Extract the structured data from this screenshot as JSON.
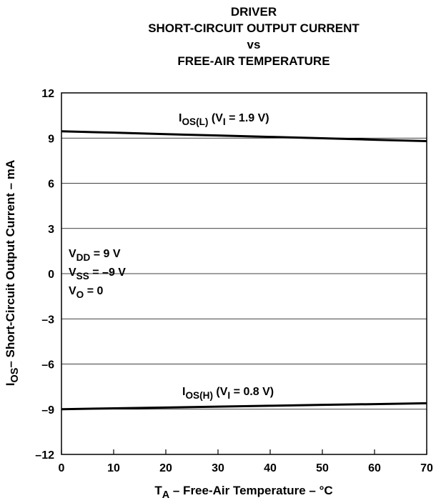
{
  "chart_data": {
    "type": "line",
    "title": [
      "DRIVER",
      "SHORT-CIRCUIT OUTPUT CURRENT",
      "vs",
      "FREE-AIR TEMPERATURE"
    ],
    "x_label": [
      {
        "text": "T"
      },
      {
        "text": "A",
        "sub": true
      },
      {
        "text": " – Free-Air Temperature – °C"
      }
    ],
    "y_label": [
      {
        "text": "I"
      },
      {
        "text": "OS",
        "sub": true
      },
      {
        "text": "– Short-Circuit Output Current – mA"
      }
    ],
    "x": [
      0,
      10,
      20,
      30,
      40,
      50,
      60,
      70
    ],
    "series": [
      {
        "name": [
          {
            "text": "I"
          },
          {
            "text": "OS(L)",
            "sub": true
          },
          {
            "text": " (V"
          },
          {
            "text": "I",
            "sub": true
          },
          {
            "text": " = 1.9 V)"
          }
        ],
        "color": "#000000",
        "values": [
          9.45,
          9.36,
          9.26,
          9.17,
          9.08,
          8.99,
          8.89,
          8.8
        ]
      },
      {
        "name": [
          {
            "text": "I"
          },
          {
            "text": "OS(H)",
            "sub": true
          },
          {
            "text": " (V"
          },
          {
            "text": "I",
            "sub": true
          },
          {
            "text": " = 0.8 V)"
          }
        ],
        "color": "#000000",
        "values": [
          -9,
          -8.94,
          -8.89,
          -8.83,
          -8.77,
          -8.71,
          -8.66,
          -8.6
        ]
      }
    ],
    "annotations": [
      [
        {
          "text": "V"
        },
        {
          "text": "DD",
          "sub": true
        },
        {
          "text": " = 9 V"
        }
      ],
      [
        {
          "text": "V"
        },
        {
          "text": "SS",
          "sub": true
        },
        {
          "text": " = –9 V"
        }
      ],
      [
        {
          "text": "V"
        },
        {
          "text": "O",
          "sub": true
        },
        {
          "text": " = 0"
        }
      ]
    ],
    "xlim": [
      0,
      70
    ],
    "ylim": [
      -12,
      12
    ],
    "xticks": [
      0,
      10,
      20,
      30,
      40,
      50,
      60,
      70
    ],
    "yticks": [
      {
        "value": -12,
        "label": "–12"
      },
      {
        "value": -9,
        "label": "–9"
      },
      {
        "value": -6,
        "label": "–6"
      },
      {
        "value": -3,
        "label": "–3"
      },
      0,
      3,
      6,
      9,
      12
    ],
    "grid": true
  }
}
